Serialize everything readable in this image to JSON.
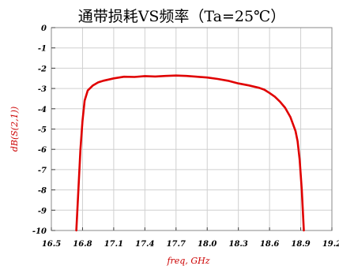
{
  "chart_data": {
    "type": "line",
    "title": "通带损耗VS频率（Ta=25℃）",
    "xlabel": "freq, GHz",
    "ylabel": "dB(S(2,1))",
    "xlim": [
      16.5,
      19.2
    ],
    "ylim": [
      -10,
      0
    ],
    "x_ticks": [
      16.5,
      16.8,
      17.1,
      17.4,
      17.7,
      18.0,
      18.3,
      18.6,
      18.9,
      19.2
    ],
    "x_tick_labels": [
      "16.5",
      "16.8",
      "17.1",
      "17.4",
      "17.7",
      "18.0",
      "18.3",
      "18.6",
      "18.9",
      "19.2"
    ],
    "y_ticks": [
      0,
      -1,
      -2,
      -3,
      -4,
      -5,
      -6,
      -7,
      -8,
      -9,
      -10
    ],
    "y_tick_labels": [
      "0",
      "-1",
      "-2",
      "-3",
      "-4",
      "-5",
      "-6",
      "-7",
      "-8",
      "-9",
      "-10"
    ],
    "grid": true,
    "series": [
      {
        "color": "#e00000",
        "x": [
          16.74,
          16.76,
          16.78,
          16.8,
          16.82,
          16.85,
          16.9,
          16.95,
          17.0,
          17.05,
          17.1,
          17.2,
          17.3,
          17.4,
          17.5,
          17.6,
          17.7,
          17.8,
          17.9,
          18.0,
          18.1,
          18.2,
          18.3,
          18.4,
          18.5,
          18.55,
          18.6,
          18.65,
          18.7,
          18.75,
          18.8,
          18.85,
          18.87,
          18.89,
          18.91,
          18.93
        ],
        "values": [
          -10.0,
          -8.0,
          -6.0,
          -4.6,
          -3.6,
          -3.1,
          -2.85,
          -2.7,
          -2.62,
          -2.56,
          -2.5,
          -2.42,
          -2.43,
          -2.39,
          -2.41,
          -2.38,
          -2.36,
          -2.38,
          -2.42,
          -2.46,
          -2.53,
          -2.62,
          -2.75,
          -2.85,
          -2.97,
          -3.06,
          -3.22,
          -3.4,
          -3.65,
          -3.95,
          -4.4,
          -5.1,
          -5.6,
          -6.5,
          -8.0,
          -10.0
        ]
      }
    ]
  }
}
